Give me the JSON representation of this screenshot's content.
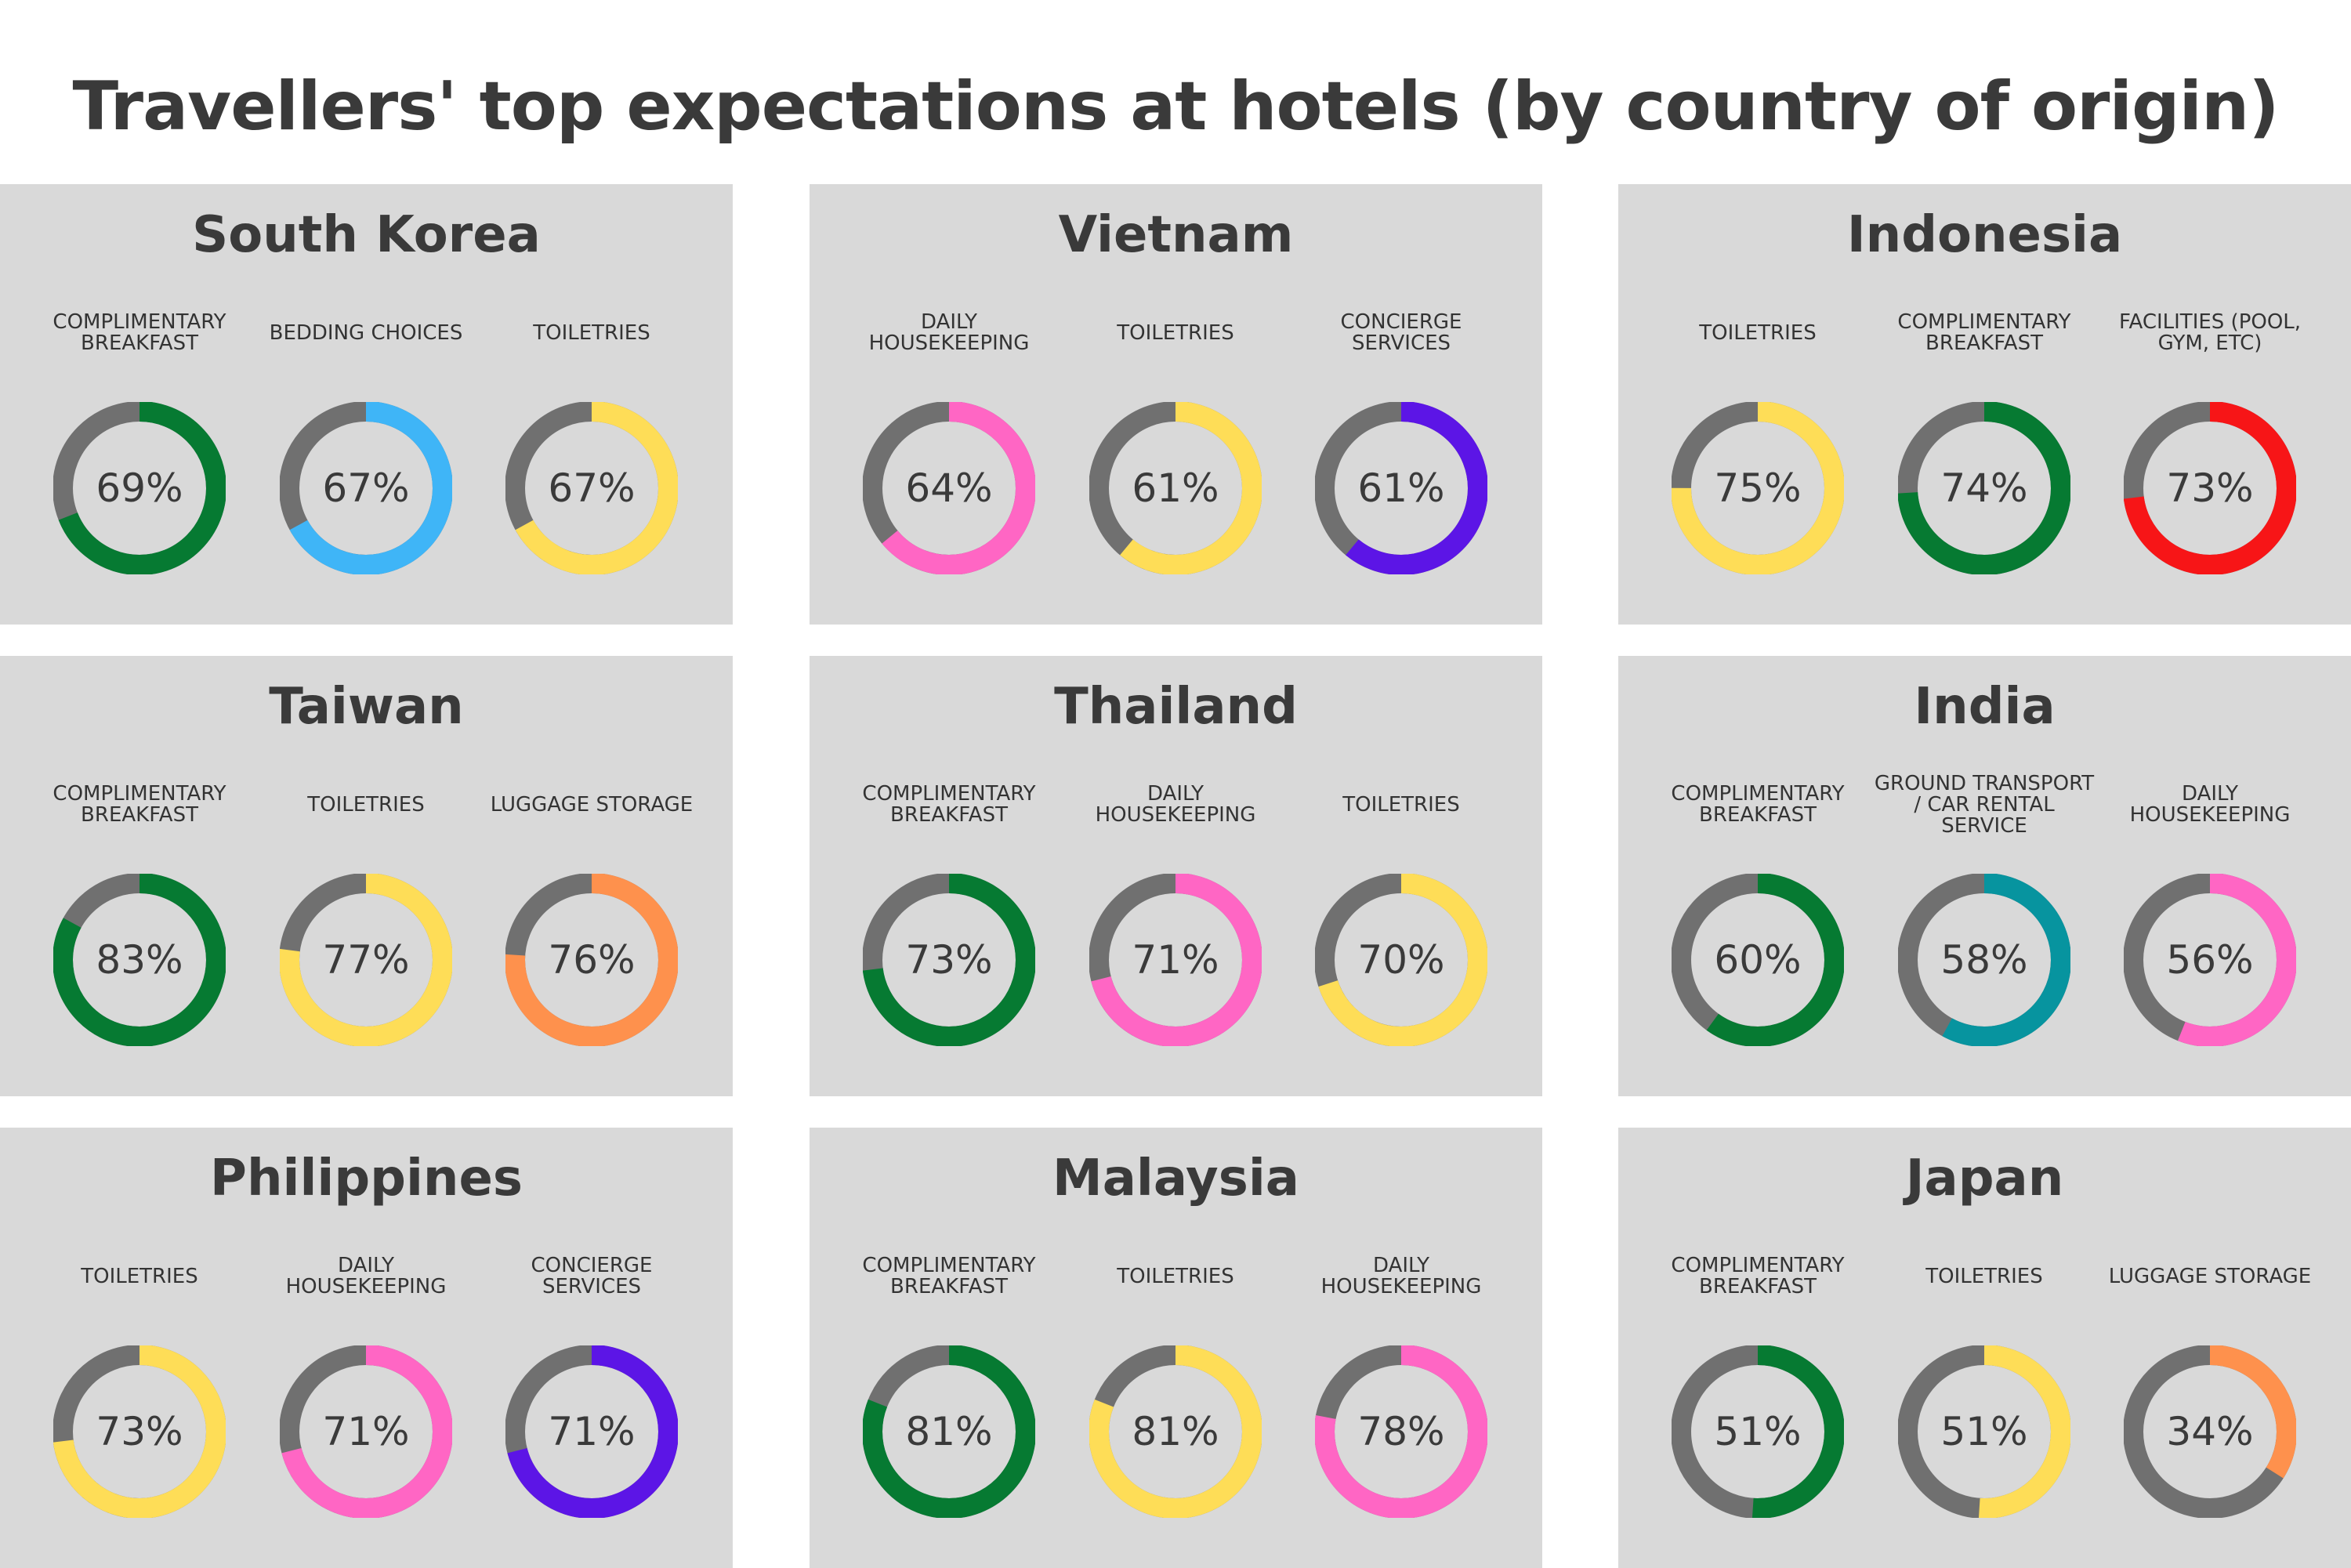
{
  "title": "Travellers' top expectations at hotels (by country of origin)",
  "colors": {
    "track": "#707070",
    "green": "#067a32",
    "blue": "#3fb5f7",
    "yellow": "#fedd57",
    "pink": "#ff66c4",
    "purple": "#5c15e6",
    "red": "#f71517",
    "orange": "#fe914d",
    "teal": "#07949f"
  },
  "chart_data": [
    {
      "type": "pie",
      "title": "South Korea",
      "categories": [
        "COMPLIMENTARY BREAKFAST",
        "BEDDING CHOICES",
        "TOILETRIES"
      ],
      "values": [
        69,
        67,
        67
      ],
      "colors": [
        "#067a32",
        "#3fb5f7",
        "#fedd57"
      ],
      "labels": [
        "69%",
        "67%",
        "67%"
      ]
    },
    {
      "type": "pie",
      "title": "Vietnam",
      "categories": [
        "DAILY HOUSEKEEPING",
        "TOILETRIES",
        "CONCIERGE SERVICES"
      ],
      "values": [
        64,
        61,
        61
      ],
      "colors": [
        "#ff66c4",
        "#fedd57",
        "#5c15e6"
      ],
      "labels": [
        "64%",
        "61%",
        "61%"
      ]
    },
    {
      "type": "pie",
      "title": "Indonesia",
      "categories": [
        "TOILETRIES",
        "COMPLIMENTARY BREAKFAST",
        "FACILITIES (POOL, GYM, ETC)"
      ],
      "values": [
        75,
        74,
        73
      ],
      "colors": [
        "#fedd57",
        "#067a32",
        "#f71517"
      ],
      "labels": [
        "75%",
        "74%",
        "73%"
      ]
    },
    {
      "type": "pie",
      "title": "Taiwan",
      "categories": [
        "COMPLIMENTARY BREAKFAST",
        "TOILETRIES",
        "LUGGAGE STORAGE"
      ],
      "values": [
        83,
        77,
        76
      ],
      "colors": [
        "#067a32",
        "#fedd57",
        "#fe914d"
      ],
      "labels": [
        "83%",
        "77%",
        "76%"
      ]
    },
    {
      "type": "pie",
      "title": "Thailand",
      "categories": [
        "COMPLIMENTARY BREAKFAST",
        "DAILY HOUSEKEEPING",
        "TOILETRIES"
      ],
      "values": [
        73,
        71,
        70
      ],
      "colors": [
        "#067a32",
        "#ff66c4",
        "#fedd57"
      ],
      "labels": [
        "73%",
        "71%",
        "70%"
      ]
    },
    {
      "type": "pie",
      "title": "India",
      "categories": [
        "COMPLIMENTARY BREAKFAST",
        "GROUND TRANSPORT / CAR RENTAL SERVICE",
        "DAILY HOUSEKEEPING"
      ],
      "values": [
        60,
        58,
        56
      ],
      "colors": [
        "#067a32",
        "#07949f",
        "#ff66c4"
      ],
      "labels": [
        "60%",
        "58%",
        "56%"
      ]
    },
    {
      "type": "pie",
      "title": "Philippines",
      "categories": [
        "TOILETRIES",
        "DAILY HOUSEKEEPING",
        "CONCIERGE SERVICES"
      ],
      "values": [
        73,
        71,
        71
      ],
      "colors": [
        "#fedd57",
        "#ff66c4",
        "#5c15e6"
      ],
      "labels": [
        "73%",
        "71%",
        "71%"
      ]
    },
    {
      "type": "pie",
      "title": "Malaysia",
      "categories": [
        "COMPLIMENTARY BREAKFAST",
        "TOILETRIES",
        "DAILY HOUSEKEEPING"
      ],
      "values": [
        81,
        81,
        78
      ],
      "colors": [
        "#067a32",
        "#fedd57",
        "#ff66c4"
      ],
      "labels": [
        "81%",
        "81%",
        "78%"
      ]
    },
    {
      "type": "pie",
      "title": "Japan",
      "categories": [
        "COMPLIMENTARY BREAKFAST",
        "TOILETRIES",
        "LUGGAGE STORAGE"
      ],
      "values": [
        51,
        51,
        34
      ],
      "colors": [
        "#067a32",
        "#fedd57",
        "#fe914d"
      ],
      "labels": [
        "51%",
        "51%",
        "34%"
      ]
    }
  ]
}
